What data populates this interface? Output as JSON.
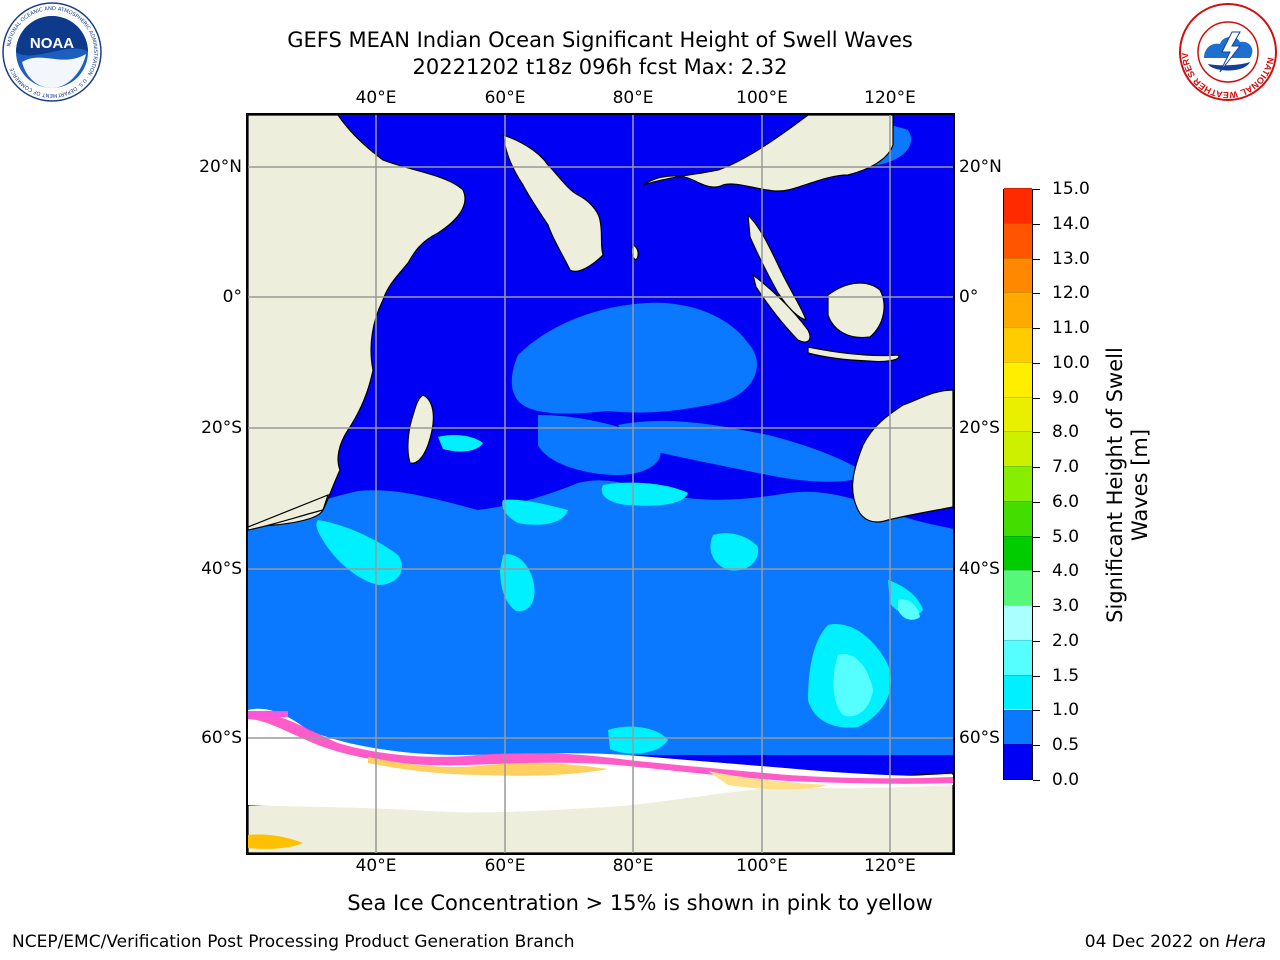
{
  "title": {
    "line1": "GEFS MEAN Indian Ocean Significant Height of Swell Waves",
    "line2": "20221202 t18z 096h fcst   Max: 2.32"
  },
  "axes": {
    "lon_labels_top": [
      "40°E",
      "60°E",
      "80°E",
      "100°E",
      "120°E"
    ],
    "lon_labels_bottom": [
      "40°E",
      "60°E",
      "80°E",
      "100°E",
      "120°E"
    ],
    "lat_labels_left": [
      "20°N",
      "0°",
      "20°S",
      "40°S",
      "60°S"
    ],
    "lat_labels_right": [
      "20°N",
      "0°",
      "20°S",
      "40°S",
      "60°S"
    ]
  },
  "colorbar": {
    "label": "Significant Height of Swell Waves [m]",
    "ticks": [
      "0.0",
      "0.5",
      "1.0",
      "1.5",
      "2.0",
      "3.0",
      "4.0",
      "5.0",
      "6.0",
      "7.0",
      "8.0",
      "9.0",
      "10.0",
      "11.0",
      "12.0",
      "13.0",
      "14.0",
      "15.0"
    ],
    "colors": [
      "#0000f5",
      "#0a78ff",
      "#00f0ff",
      "#55ffff",
      "#aaffff",
      "#55f878",
      "#00cc00",
      "#44dd00",
      "#88ee00",
      "#ccf000",
      "#e8f000",
      "#ffee00",
      "#ffcc00",
      "#ffaa00",
      "#ff8800",
      "#ff5500",
      "#ff2a00",
      "#ff0000"
    ]
  },
  "footnote": "Sea Ice Concentration > 15% is shown in pink to yellow",
  "credit": "NCEP/EMC/Verification Post Processing Product Generation Branch",
  "date": {
    "text": "04 Dec 2022 on ",
    "host": "Hera"
  },
  "logos": {
    "noaa": "NOAA",
    "noaa_ring": "NATIONAL OCEANIC AND ATMOSPHERIC ADMINISTRATION · U.S. DEPARTMENT OF COMMERCE",
    "nws_ring": "NATIONAL WEATHER SERVICE"
  }
}
